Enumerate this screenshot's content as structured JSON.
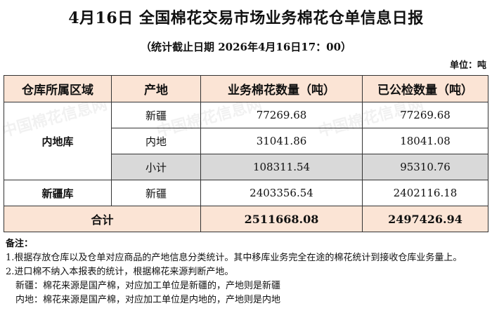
{
  "title": "4月16日 全国棉花交易市场业务棉花仓单信息日报",
  "subtitle": "（统计截止日期 2026年4月16日17：00）",
  "unit": "单位：吨",
  "table": {
    "headers": [
      "仓库所属区域",
      "产地",
      "业务棉花数量（吨）",
      "已公检数量（吨）"
    ],
    "inland": {
      "region": "内地库",
      "rows": [
        {
          "origin": "新疆",
          "business": "77269.68",
          "inspected": "77269.68"
        },
        {
          "origin": "内地",
          "business": "31041.86",
          "inspected": "18041.08"
        },
        {
          "origin": "小计",
          "business": "108311.54",
          "inspected": "95310.76"
        }
      ]
    },
    "xinjiang": {
      "region": "新疆库",
      "origin": "新疆",
      "business": "2403356.54",
      "inspected": "2402116.18"
    },
    "total": {
      "label": "合计",
      "business": "2511668.08",
      "inspected": "2497426.94"
    }
  },
  "notes": {
    "heading": "备注：",
    "lines": [
      "1.根据存放仓库以及仓单对应商品的产地信息分类统计。其中移库业务完全在途的棉花统计到接收仓库业务量上。",
      "2.进口棉不纳入本报表的统计，根据棉花来源判断产地。",
      "新疆：棉花来源是国产棉，对应加工单位是新疆的，产地则是新疆",
      "内地：棉花来源是国产棉，对应加工单位是内地的，产地则是内地"
    ]
  },
  "watermark": "中国棉花信息网 www.cottonchina.org.cn",
  "colors": {
    "header_bg": "#fbe4d5",
    "subtotal_bg": "#d9d9d9"
  }
}
